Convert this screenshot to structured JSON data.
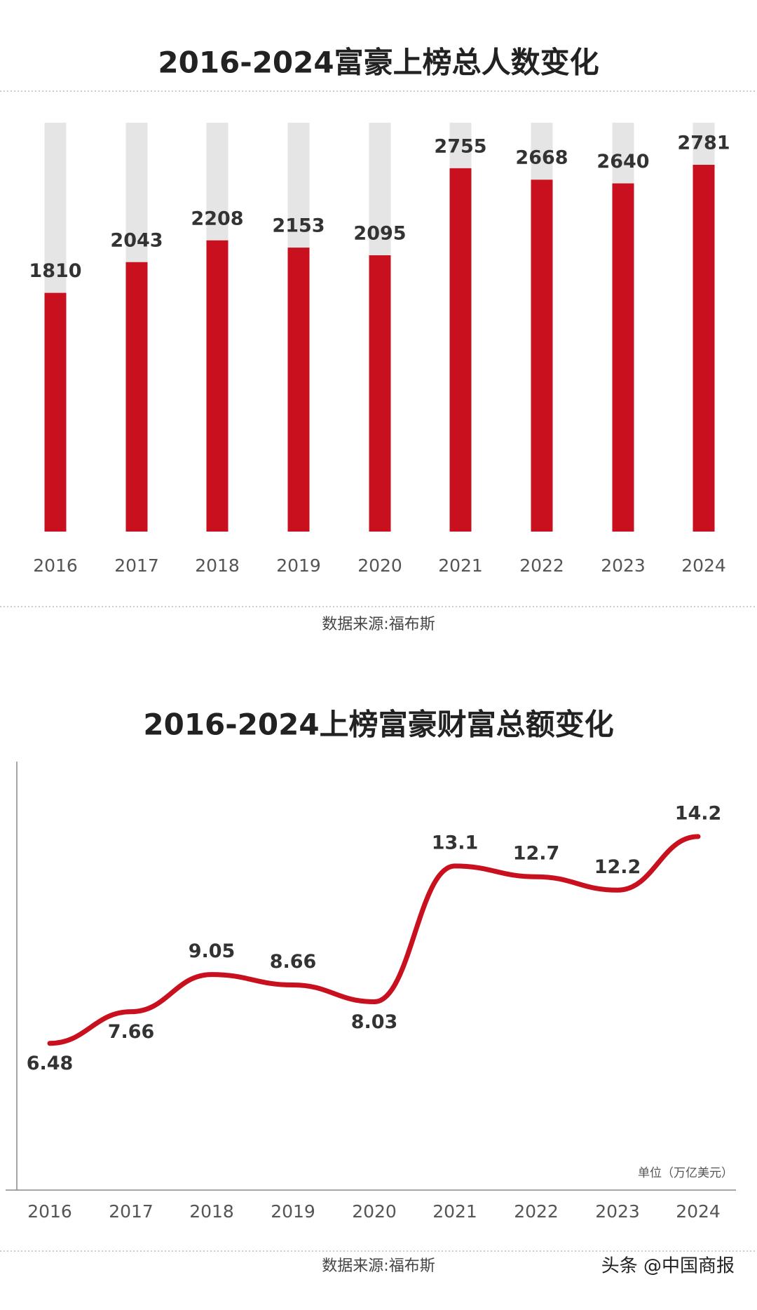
{
  "chart_data": [
    {
      "type": "bar",
      "title": "2016-2024富豪上榜总人数变化",
      "categories": [
        "2016",
        "2017",
        "2018",
        "2019",
        "2020",
        "2021",
        "2022",
        "2023",
        "2024"
      ],
      "values": [
        1810,
        2043,
        2208,
        2153,
        2095,
        2755,
        2668,
        2640,
        2781
      ],
      "color": "#c8101f",
      "track_color": "#e5e5e5",
      "ylim": [
        0,
        3100
      ],
      "source": "数据来源:福布斯"
    },
    {
      "type": "line",
      "title": "2016-2024上榜富豪财富总额变化",
      "categories": [
        "2016",
        "2017",
        "2018",
        "2019",
        "2020",
        "2021",
        "2022",
        "2023",
        "2024"
      ],
      "values": [
        6.48,
        7.66,
        9.05,
        8.66,
        8.03,
        13.1,
        12.7,
        12.2,
        14.2
      ],
      "color": "#c8101f",
      "ylim": [
        1,
        17
      ],
      "unit": "单位（万亿美元）",
      "source": "数据来源:福布斯"
    }
  ],
  "watermark": "头条 @中国商报"
}
